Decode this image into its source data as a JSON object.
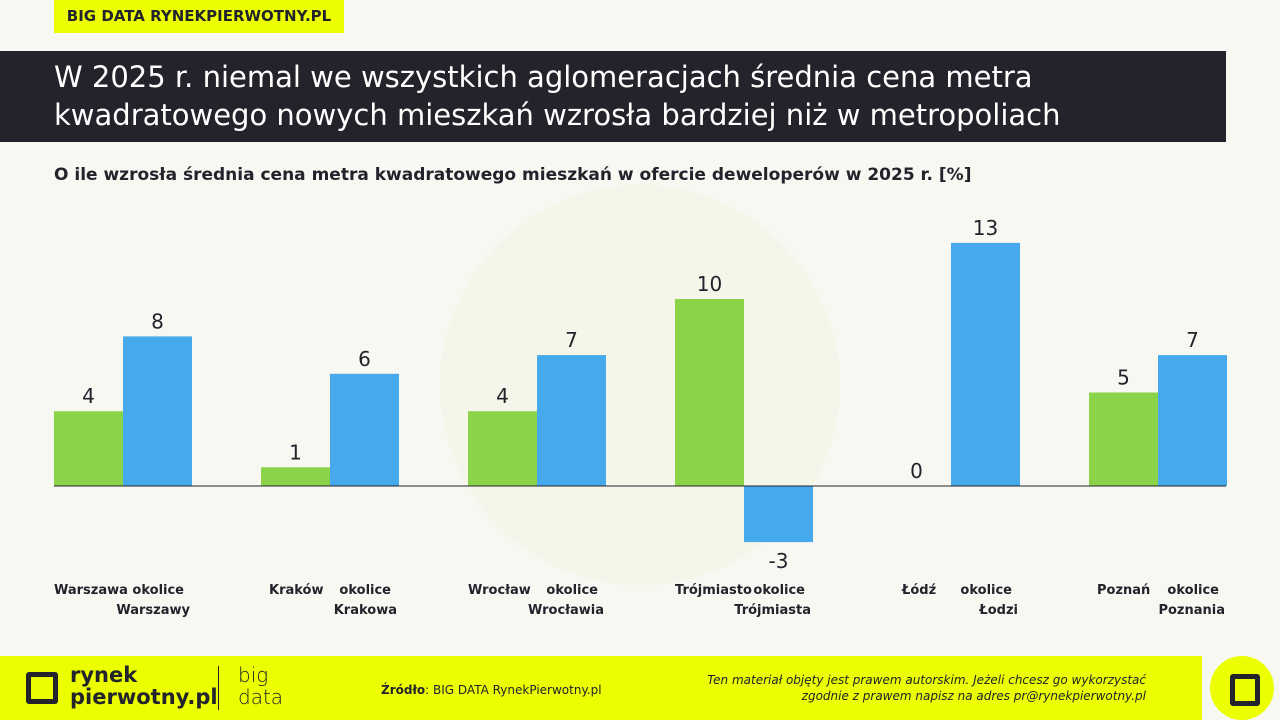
{
  "tag": "BIG DATA RYNEKPIERWOTNY.PL",
  "title": "W 2025 r. niemal we wszystkich aglomeracjach średnia cena metra kwadratowego nowych mieszkań wzrosła bardziej niż w metropoliach",
  "chart_data": {
    "type": "bar",
    "title": "O ile wzrosła średnia cena metra kwadratowego mieszkań w ofercie deweloperów w 2025 r. [%]",
    "categories": [
      "Warszawa",
      "okolice Warszawy",
      "Kraków",
      "okolice Krakowa",
      "Wrocław",
      "okolice Wrocławia",
      "Trójmiasto",
      "okolice Trójmiasta",
      "Łódź",
      "okolice Łodzi",
      "Poznań",
      "okolice Poznania"
    ],
    "values": [
      4,
      8,
      1,
      6,
      4,
      7,
      10,
      -3,
      0,
      13,
      5,
      7
    ],
    "colors": {
      "city": "#8bd44a",
      "surroundings": "#46a9ec"
    },
    "grid": false
  },
  "footer": {
    "logo": "rynek pierwotny.pl",
    "bigdata": "big data",
    "source_label": "Źródło",
    "source": ": BIG DATA RynekPierwotny.pl",
    "copyright_1": "Ten materiał objęty jest prawem autorskim. Jeżeli chcesz go wykorzystać",
    "copyright_2": "zgodnie z prawem napisz na adres ",
    "email": "pr@rynekpierwotny.pl"
  }
}
